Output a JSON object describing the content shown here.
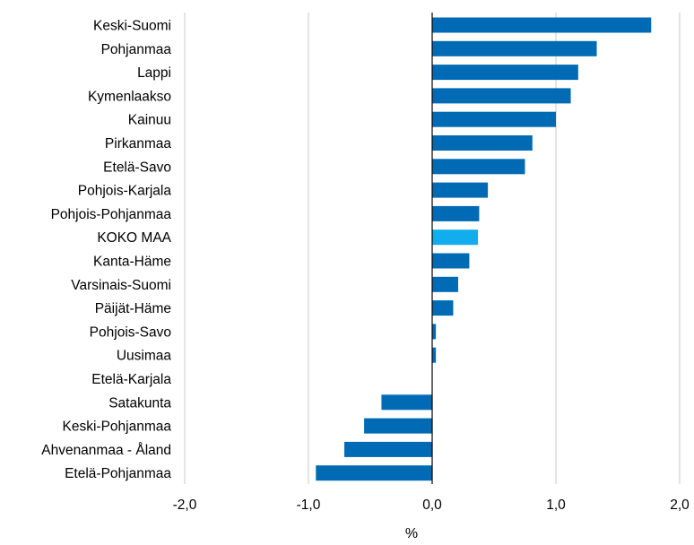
{
  "chart_data": {
    "type": "bar",
    "orientation": "horizontal",
    "categories": [
      "Keski-Suomi",
      "Pohjanmaa",
      "Lappi",
      "Kymenlaakso",
      "Kainuu",
      "Pirkanmaa",
      "Etelä-Savo",
      "Pohjois-Karjala",
      "Pohjois-Pohjanmaa",
      "KOKO MAA",
      "Kanta-Häme",
      "Varsinais-Suomi",
      "Päijät-Häme",
      "Pohjois-Savo",
      "Uusimaa",
      "Etelä-Karjala",
      "Satakunta",
      "Keski-Pohjanmaa",
      "Ahvenanmaa - Åland",
      "Etelä-Pohjanmaa"
    ],
    "values": [
      1.77,
      1.33,
      1.18,
      1.12,
      1.0,
      0.81,
      0.75,
      0.45,
      0.38,
      0.37,
      0.3,
      0.21,
      0.17,
      0.03,
      0.03,
      0.0,
      -0.41,
      -0.55,
      -0.71,
      -0.94
    ],
    "highlight_category": "KOKO MAA",
    "xlim": [
      -2,
      2
    ],
    "xticks": [
      -2,
      -1,
      0,
      1,
      2
    ],
    "xtick_labels": [
      "-2,0",
      "-1,0",
      "0,0",
      "1,0",
      "2,0"
    ],
    "xlabel": "%",
    "grid": "vertical",
    "colors": {
      "bar": "#006bb4",
      "highlight": "#11adec",
      "grid": "#c8c8c8",
      "zero_line": "#000000"
    }
  }
}
